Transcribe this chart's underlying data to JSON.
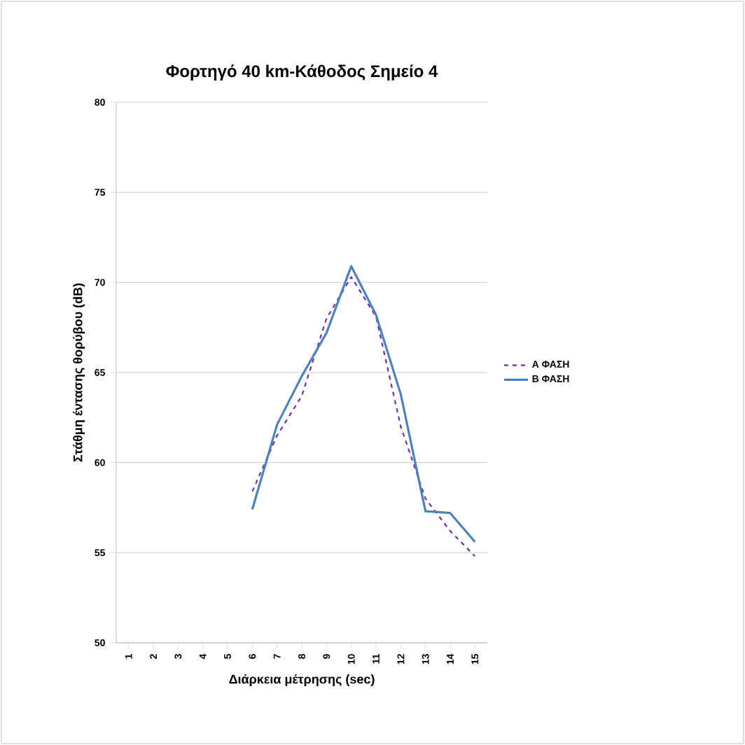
{
  "chart_data": {
    "type": "line",
    "title": "Φορτηγό 40 km-Κάθοδος Σημείο 4",
    "xlabel": "Διάρκεια μέτρησης (sec)",
    "ylabel": "Στάθμη έντασης θορύβου (dB)",
    "categories": [
      "1",
      "2",
      "3",
      "4",
      "5",
      "6",
      "7",
      "8",
      "9",
      "10",
      "11",
      "12",
      "13",
      "14",
      "15"
    ],
    "series": [
      {
        "name": "Α ΦΑΣΗ",
        "color": "#7030a0",
        "line_style": "dashed",
        "values": [
          null,
          null,
          null,
          null,
          null,
          58.4,
          61.5,
          63.7,
          68.0,
          70.3,
          68.1,
          62.0,
          58.0,
          56.2,
          54.8
        ]
      },
      {
        "name": "Β ΦΑΣΗ",
        "color": "#4f81bd",
        "line_style": "solid",
        "values": [
          null,
          null,
          null,
          null,
          null,
          57.4,
          62.1,
          64.8,
          67.2,
          70.9,
          68.2,
          63.8,
          57.3,
          57.2,
          55.6
        ]
      }
    ],
    "ylim": [
      50,
      80
    ],
    "yticks": [
      50,
      55,
      60,
      65,
      70,
      75,
      80
    ],
    "grid": "y",
    "legend": "right",
    "marker": "none"
  }
}
